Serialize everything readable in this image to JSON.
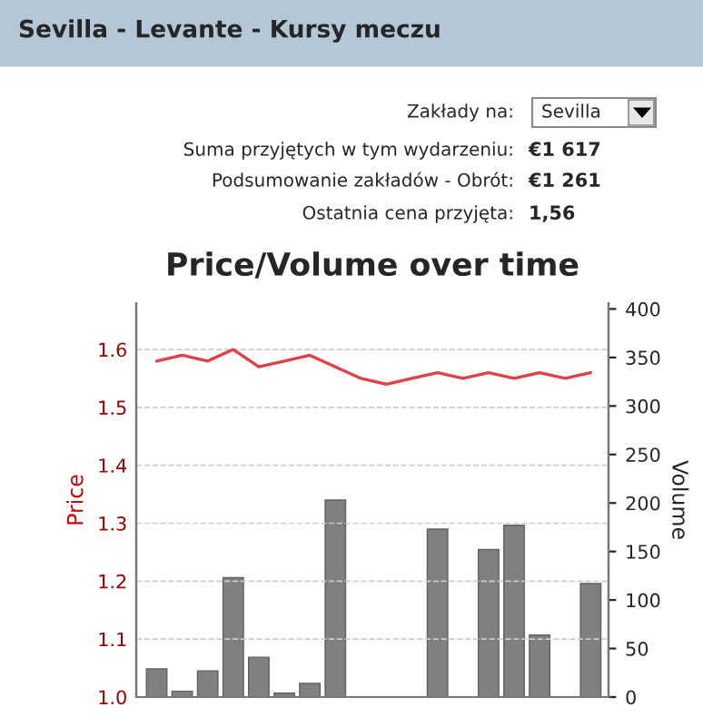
{
  "chart_data": {
    "type": "bar",
    "title": "Price/Volume over time",
    "annotations": [
      "Sevilla - Levante - Kursy meczu",
      "Zakłady na:",
      "Sevilla",
      "Suma przyjętych w tym wydarzeniu:",
      "€1 617",
      "Podsumowanie zakładów - Obrót:",
      "€1 261",
      "Ostatnia cena przyjęta:",
      "1,56"
    ],
    "categories": [
      null,
      null,
      null,
      null,
      null,
      null,
      null,
      null,
      null,
      null,
      null,
      null,
      null,
      null,
      null,
      null,
      null,
      null
    ],
    "ylabel": "Price",
    "y2label": "Volume",
    "series": [
      {
        "name": null,
        "type": "line",
        "color": "#e0404a",
        "values": [
          1.58,
          1.59,
          1.58,
          1.6,
          1.57,
          1.58,
          1.59,
          1.57,
          1.55,
          1.54,
          1.55,
          1.56,
          1.55,
          1.56,
          1.55,
          1.56,
          1.55,
          1.56
        ]
      },
      {
        "name": null,
        "axis": "y2",
        "color": "#808080",
        "values": [
          29,
          6,
          27,
          123,
          41,
          4,
          14,
          203,
          null,
          null,
          null,
          173,
          null,
          152,
          177,
          64,
          null,
          117
        ]
      }
    ],
    "ylim": [
      1.0,
      1.68
    ],
    "yticks": [
      {
        "value": 1.0,
        "label": "1.0"
      },
      1.1,
      1.2,
      1.3,
      1.4,
      1.5,
      1.6
    ],
    "y2lim": [
      0,
      406
    ],
    "y2ticks": [
      0,
      50,
      100,
      150,
      200,
      250,
      300,
      350,
      400
    ],
    "grid": "y",
    "legend": false,
    "marker": "none",
    "line_style": "solid"
  }
}
